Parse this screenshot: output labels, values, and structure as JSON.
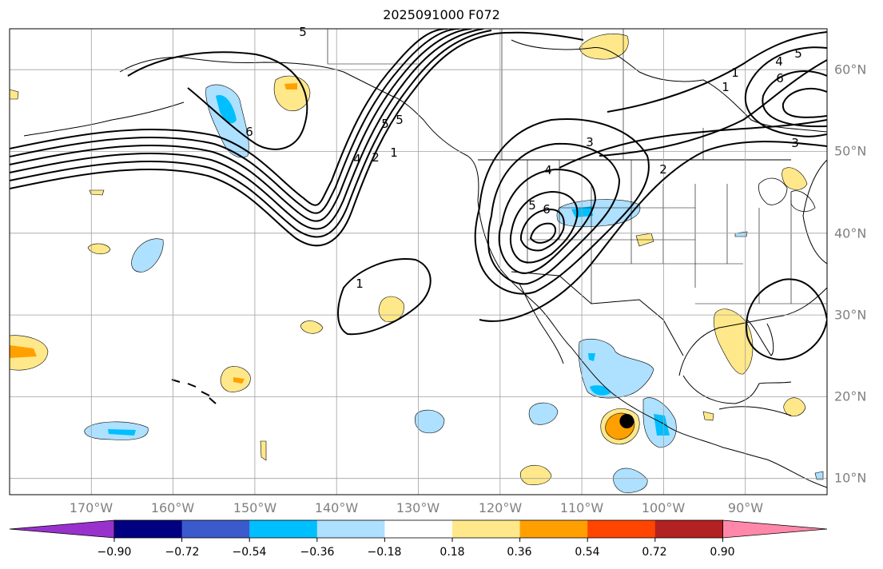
{
  "title": "2025091000 F072",
  "map": {
    "projection": "cylindrical",
    "lon_range": [
      -180,
      -80
    ],
    "lat_range": [
      8,
      65
    ],
    "longitude_labels": [
      "170°W",
      "160°W",
      "150°W",
      "140°W",
      "130°W",
      "120°W",
      "110°W",
      "100°W",
      "90°W"
    ],
    "latitude_labels": [
      "60°N",
      "50°N",
      "40°N",
      "30°N",
      "20°N",
      "10°N"
    ],
    "grid": true,
    "contour_labels": [
      "5",
      "6",
      "4",
      "2",
      "1",
      "5",
      "1",
      "5",
      "3",
      "3",
      "2",
      "4",
      "6",
      "5",
      "1",
      "4",
      "5",
      "6",
      "1"
    ],
    "marker": {
      "name": "storm-center",
      "lon": -104.5,
      "lat": 17,
      "color": "#000000"
    }
  },
  "colorbar": {
    "ticks": [
      "−0.90",
      "−0.72",
      "−0.54",
      "−0.36",
      "−0.18",
      "0.18",
      "0.36",
      "0.54",
      "0.72",
      "0.90"
    ],
    "colors": [
      "#9932cc",
      "#000080",
      "#3b5bcc",
      "#00bfff",
      "#aee0ff",
      "#ffffff",
      "#ffe88a",
      "#ffa000",
      "#ff4500",
      "#b22222",
      "#ff88aa"
    ]
  }
}
